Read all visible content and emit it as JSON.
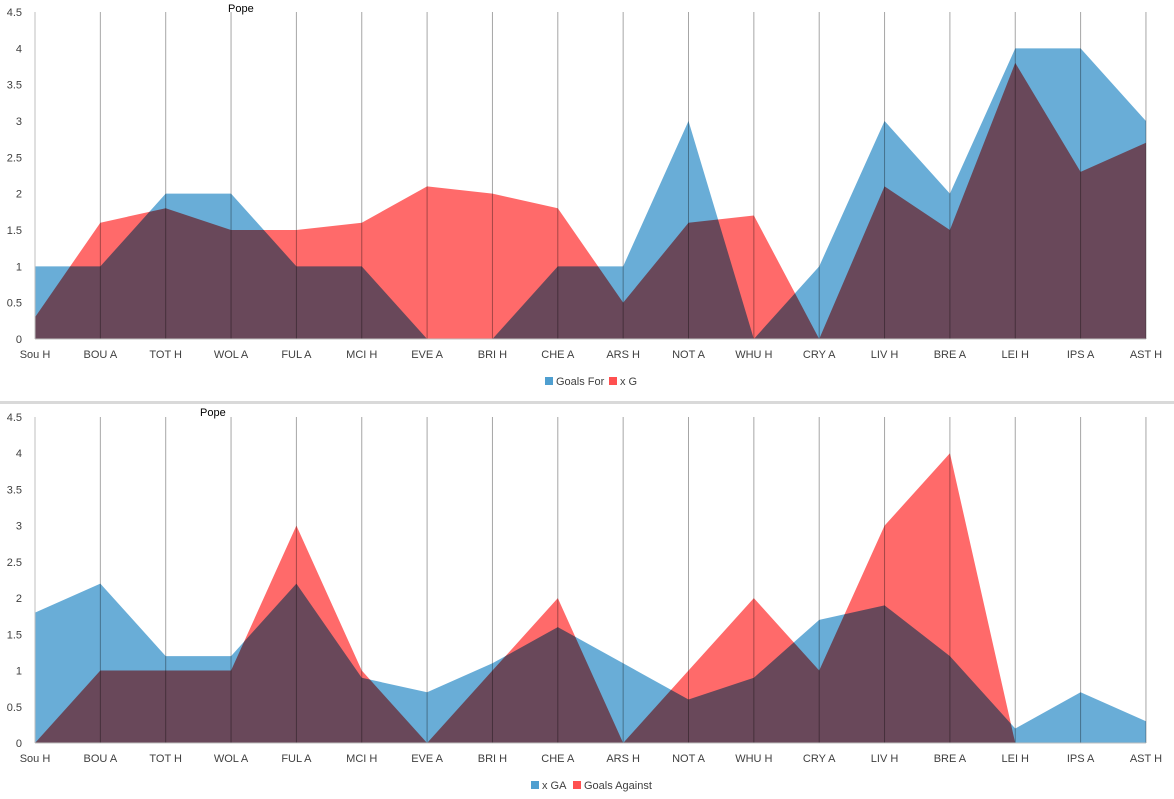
{
  "chart_data": [
    {
      "type": "area",
      "title": "Pope",
      "categories": [
        "Sou H",
        "BOU A",
        "TOT H",
        "WOL A",
        "FUL A",
        "MCI H",
        "EVE A",
        "BRI H",
        "CHE A",
        "ARS H",
        "NOT A",
        "WHU H",
        "CRY A",
        "LIV H",
        "BRE A",
        "LEI H",
        "IPS A",
        "AST H"
      ],
      "series": [
        {
          "name": "Goals For",
          "color": "#4f9fd0",
          "values": [
            1,
            1,
            2,
            2,
            1,
            1,
            0,
            0,
            1,
            1,
            3,
            0,
            1,
            3,
            2,
            4,
            4,
            3
          ]
        },
        {
          "name": "x G",
          "color": "#ff5050",
          "values": [
            0.3,
            1.6,
            1.8,
            1.5,
            1.5,
            1.6,
            2.1,
            2.0,
            1.8,
            0.5,
            1.6,
            1.7,
            0,
            2.1,
            1.5,
            3.8,
            2.3,
            2.7
          ]
        }
      ],
      "ylim": [
        0,
        4.5
      ],
      "yticks": [
        0,
        0.5,
        1,
        1.5,
        2,
        2.5,
        3,
        3.5,
        4,
        4.5
      ],
      "yticks_labels": [
        "0",
        "0.5",
        "1",
        "1.5",
        "2",
        "2.5",
        "3",
        "3.5",
        "4",
        "4.5"
      ],
      "grid": "vertical",
      "legend": "bottom"
    },
    {
      "type": "area",
      "title": "Pope",
      "categories": [
        "Sou H",
        "BOU A",
        "TOT H",
        "WOL A",
        "FUL A",
        "MCI H",
        "EVE A",
        "BRI H",
        "CHE A",
        "ARS H",
        "NOT A",
        "WHU H",
        "CRY A",
        "LIV H",
        "BRE A",
        "LEI H",
        "IPS A",
        "AST H"
      ],
      "series": [
        {
          "name": "x GA",
          "color": "#4f9fd0",
          "values": [
            1.8,
            2.2,
            1.2,
            1.2,
            2.2,
            0.9,
            0.7,
            1.1,
            1.6,
            1.1,
            0.6,
            0.9,
            1.7,
            1.9,
            1.2,
            0.2,
            0.7,
            0.3
          ]
        },
        {
          "name": "Goals Against",
          "color": "#ff5050",
          "values": [
            0,
            1,
            1,
            1,
            3,
            1,
            0,
            1,
            2,
            0,
            1,
            2,
            1,
            3,
            4,
            0,
            0,
            0
          ]
        }
      ],
      "ylim": [
        0,
        4.5
      ],
      "yticks": [
        0,
        0.5,
        1,
        1.5,
        2,
        2.5,
        3,
        3.5,
        4,
        4.5
      ],
      "yticks_labels": [
        "0",
        "0.5",
        "1",
        "1.5",
        "2",
        "2.5",
        "3",
        "3.5",
        "4",
        "4.5"
      ],
      "grid": "vertical",
      "legend": "bottom"
    }
  ]
}
